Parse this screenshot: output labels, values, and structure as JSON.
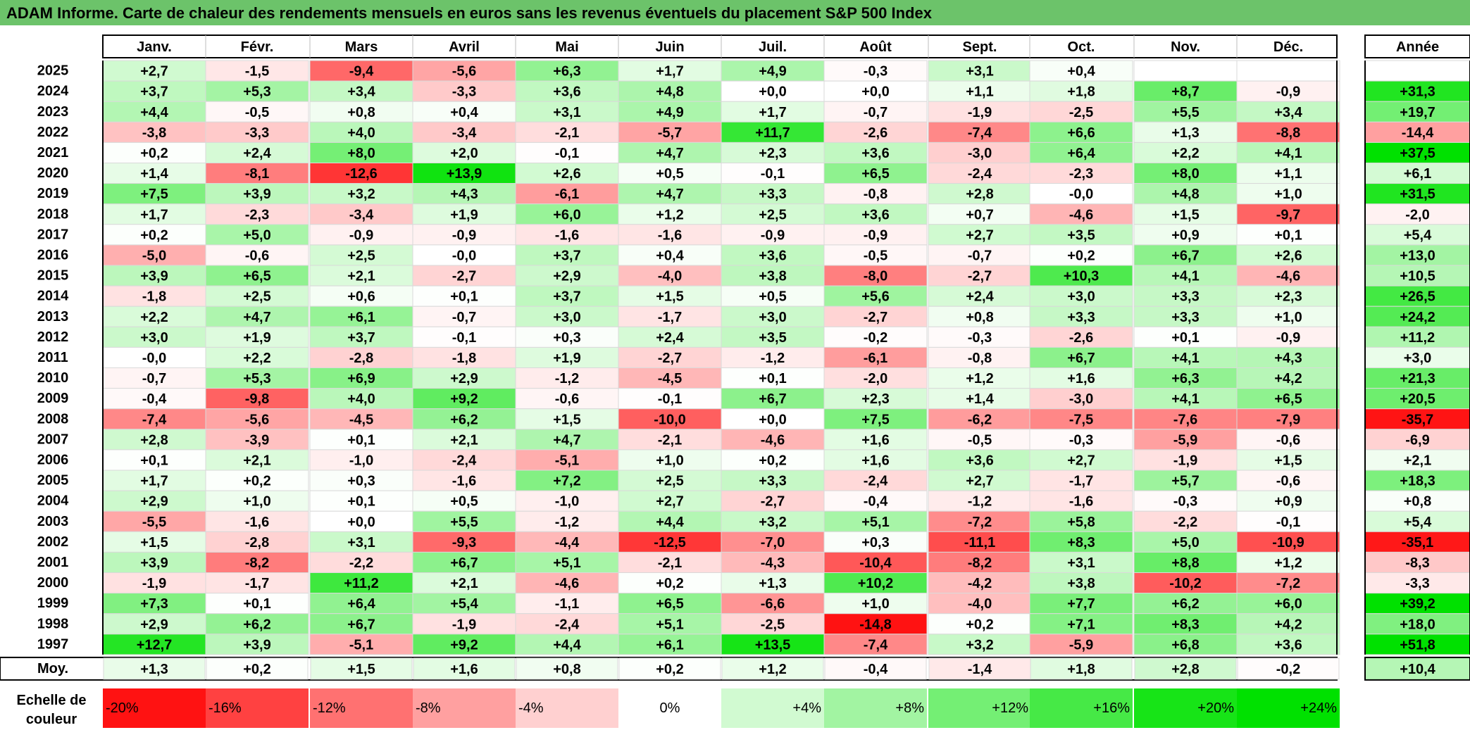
{
  "title": "ADAM Informe. Carte de chaleur des rendements mensuels en euros sans les revenus éventuels du placement S&P 500 Index",
  "chart_data": {
    "type": "heatmap",
    "title": "ADAM Informe. Carte de chaleur des rendements mensuels en euros sans les revenus éventuels du placement S&P 500 Index",
    "months": [
      "Janv.",
      "Févr.",
      "Mars",
      "Avril",
      "Mai",
      "Juin",
      "Juil.",
      "Août",
      "Sept.",
      "Oct.",
      "Nov.",
      "Déc."
    ],
    "annual_label": "Année",
    "rows": [
      {
        "year": "2025",
        "values": [
          "+2,7",
          "-1,5",
          "-9,4",
          "-5,6",
          "+6,3",
          "+1,7",
          "+4,9",
          "-0,3",
          "+3,1",
          "+0,4",
          "",
          ""
        ],
        "annual": ""
      },
      {
        "year": "2024",
        "values": [
          "+3,7",
          "+5,3",
          "+3,4",
          "-3,3",
          "+3,6",
          "+4,8",
          "+0,0",
          "+0,0",
          "+1,1",
          "+1,8",
          "+8,7",
          "-0,9"
        ],
        "annual": "+31,3"
      },
      {
        "year": "2023",
        "values": [
          "+4,4",
          "-0,5",
          "+0,8",
          "+0,4",
          "+3,1",
          "+4,9",
          "+1,7",
          "-0,7",
          "-1,9",
          "-2,5",
          "+5,5",
          "+3,4"
        ],
        "annual": "+19,7"
      },
      {
        "year": "2022",
        "values": [
          "-3,8",
          "-3,3",
          "+4,0",
          "-3,4",
          "-2,1",
          "-5,7",
          "+11,7",
          "-2,6",
          "-7,4",
          "+6,6",
          "+1,3",
          "-8,8"
        ],
        "annual": "-14,4"
      },
      {
        "year": "2021",
        "values": [
          "+0,2",
          "+2,4",
          "+8,0",
          "+2,0",
          "-0,1",
          "+4,7",
          "+2,3",
          "+3,6",
          "-3,0",
          "+6,4",
          "+2,2",
          "+4,1"
        ],
        "annual": "+37,5"
      },
      {
        "year": "2020",
        "values": [
          "+1,4",
          "-8,1",
          "-12,6",
          "+13,9",
          "+2,6",
          "+0,5",
          "-0,1",
          "+6,5",
          "-2,4",
          "-2,3",
          "+8,0",
          "+1,1"
        ],
        "annual": "+6,1"
      },
      {
        "year": "2019",
        "values": [
          "+7,5",
          "+3,9",
          "+3,2",
          "+4,3",
          "-6,1",
          "+4,7",
          "+3,3",
          "-0,8",
          "+2,8",
          "-0,0",
          "+4,8",
          "+1,0"
        ],
        "annual": "+31,5"
      },
      {
        "year": "2018",
        "values": [
          "+1,7",
          "-2,3",
          "-3,4",
          "+1,9",
          "+6,0",
          "+1,2",
          "+2,5",
          "+3,6",
          "+0,7",
          "-4,6",
          "+1,5",
          "-9,7"
        ],
        "annual": "-2,0"
      },
      {
        "year": "2017",
        "values": [
          "+0,2",
          "+5,0",
          "-0,9",
          "-0,9",
          "-1,6",
          "-1,6",
          "-0,9",
          "-0,9",
          "+2,7",
          "+3,5",
          "+0,9",
          "+0,1"
        ],
        "annual": "+5,4"
      },
      {
        "year": "2016",
        "values": [
          "-5,0",
          "-0,6",
          "+2,5",
          "-0,0",
          "+3,7",
          "+0,4",
          "+3,6",
          "-0,5",
          "-0,7",
          "+0,2",
          "+6,7",
          "+2,6"
        ],
        "annual": "+13,0"
      },
      {
        "year": "2015",
        "values": [
          "+3,9",
          "+6,5",
          "+2,1",
          "-2,7",
          "+2,9",
          "-4,0",
          "+3,8",
          "-8,0",
          "-2,7",
          "+10,3",
          "+4,1",
          "-4,6"
        ],
        "annual": "+10,5"
      },
      {
        "year": "2014",
        "values": [
          "-1,8",
          "+2,5",
          "+0,6",
          "+0,1",
          "+3,7",
          "+1,5",
          "+0,5",
          "+5,6",
          "+2,4",
          "+3,0",
          "+3,3",
          "+2,3"
        ],
        "annual": "+26,5"
      },
      {
        "year": "2013",
        "values": [
          "+2,2",
          "+4,7",
          "+6,1",
          "-0,7",
          "+3,0",
          "-1,7",
          "+3,0",
          "-2,7",
          "+0,8",
          "+3,3",
          "+3,3",
          "+1,0"
        ],
        "annual": "+24,2"
      },
      {
        "year": "2012",
        "values": [
          "+3,0",
          "+1,9",
          "+3,7",
          "-0,1",
          "+0,3",
          "+2,4",
          "+3,5",
          "-0,2",
          "-0,3",
          "-2,6",
          "+0,1",
          "-0,9"
        ],
        "annual": "+11,2"
      },
      {
        "year": "2011",
        "values": [
          "-0,0",
          "+2,2",
          "-2,8",
          "-1,8",
          "+1,9",
          "-2,7",
          "-1,2",
          "-6,1",
          "-0,8",
          "+6,7",
          "+4,1",
          "+4,3"
        ],
        "annual": "+3,0"
      },
      {
        "year": "2010",
        "values": [
          "-0,7",
          "+5,3",
          "+6,9",
          "+2,9",
          "-1,2",
          "-4,5",
          "+0,1",
          "-2,0",
          "+1,2",
          "+1,6",
          "+6,3",
          "+4,2"
        ],
        "annual": "+21,3"
      },
      {
        "year": "2009",
        "values": [
          "-0,4",
          "-9,8",
          "+4,0",
          "+9,2",
          "-0,6",
          "-0,1",
          "+6,7",
          "+2,3",
          "+1,4",
          "-3,0",
          "+4,1",
          "+6,5"
        ],
        "annual": "+20,5"
      },
      {
        "year": "2008",
        "values": [
          "-7,4",
          "-5,6",
          "-4,5",
          "+6,2",
          "+1,5",
          "-10,0",
          "+0,0",
          "+7,5",
          "-6,2",
          "-7,5",
          "-7,6",
          "-7,9"
        ],
        "annual": "-35,7"
      },
      {
        "year": "2007",
        "values": [
          "+2,8",
          "-3,9",
          "+0,1",
          "+2,1",
          "+4,7",
          "-2,1",
          "-4,6",
          "+1,6",
          "-0,5",
          "-0,3",
          "-5,9",
          "-0,6"
        ],
        "annual": "-6,9"
      },
      {
        "year": "2006",
        "values": [
          "+0,1",
          "+2,1",
          "-1,0",
          "-2,4",
          "-5,1",
          "+1,0",
          "+0,2",
          "+1,6",
          "+3,6",
          "+2,7",
          "-1,9",
          "+1,5"
        ],
        "annual": "+2,1"
      },
      {
        "year": "2005",
        "values": [
          "+1,7",
          "+0,2",
          "+0,3",
          "-1,6",
          "+7,2",
          "+2,5",
          "+3,3",
          "-2,4",
          "+2,7",
          "-1,7",
          "+5,7",
          "-0,6"
        ],
        "annual": "+18,3"
      },
      {
        "year": "2004",
        "values": [
          "+2,9",
          "+1,0",
          "+0,1",
          "+0,5",
          "-1,0",
          "+2,7",
          "-2,7",
          "-0,4",
          "-1,2",
          "-1,6",
          "-0,3",
          "+0,9"
        ],
        "annual": "+0,8"
      },
      {
        "year": "2003",
        "values": [
          "-5,5",
          "-1,6",
          "+0,0",
          "+5,5",
          "-1,2",
          "+4,4",
          "+3,2",
          "+5,1",
          "-7,2",
          "+5,8",
          "-2,2",
          "-0,1"
        ],
        "annual": "+5,4"
      },
      {
        "year": "2002",
        "values": [
          "+1,5",
          "-2,8",
          "+3,1",
          "-9,3",
          "-4,4",
          "-12,5",
          "-7,0",
          "+0,3",
          "-11,1",
          "+8,3",
          "+5,0",
          "-10,9"
        ],
        "annual": "-35,1"
      },
      {
        "year": "2001",
        "values": [
          "+3,9",
          "-8,2",
          "-2,2",
          "+6,7",
          "+5,1",
          "-2,1",
          "-4,3",
          "-10,4",
          "-8,2",
          "+3,1",
          "+8,8",
          "+1,2"
        ],
        "annual": "-8,3"
      },
      {
        "year": "2000",
        "values": [
          "-1,9",
          "-1,7",
          "+11,2",
          "+2,1",
          "-4,6",
          "+0,2",
          "+1,3",
          "+10,2",
          "-4,2",
          "+3,8",
          "-10,2",
          "-7,2"
        ],
        "annual": "-3,3"
      },
      {
        "year": "1999",
        "values": [
          "+7,3",
          "+0,1",
          "+6,4",
          "+5,4",
          "-1,1",
          "+6,5",
          "-6,6",
          "+1,0",
          "-4,0",
          "+7,7",
          "+6,2",
          "+6,0"
        ],
        "annual": "+39,2"
      },
      {
        "year": "1998",
        "values": [
          "+2,9",
          "+6,2",
          "+6,7",
          "-1,9",
          "-2,4",
          "+5,1",
          "-2,5",
          "-14,8",
          "+0,2",
          "+7,1",
          "+8,3",
          "+4,2"
        ],
        "annual": "+18,0"
      },
      {
        "year": "1997",
        "values": [
          "+12,7",
          "+3,9",
          "-5,1",
          "+9,2",
          "+4,4",
          "+6,1",
          "+13,5",
          "-7,4",
          "+3,2",
          "-5,9",
          "+6,8",
          "+3,6"
        ],
        "annual": "+51,8"
      }
    ],
    "average": {
      "label": "Moy.",
      "values": [
        "+1,3",
        "+0,2",
        "+1,5",
        "+1,6",
        "+0,8",
        "+0,2",
        "+1,2",
        "-0,4",
        "-1,4",
        "+1,8",
        "+2,8",
        "-0,2"
      ],
      "annual": "+10,4"
    },
    "scale": {
      "label_line1": "Echelle de",
      "label_line2": "couleur",
      "stops": [
        "-20%",
        "-16%",
        "-12%",
        "-8%",
        "-4%",
        "0%",
        "+4%",
        "+8%",
        "+12%",
        "+16%",
        "+20%",
        "+24%"
      ],
      "stop_values": [
        -20,
        -16,
        -12,
        -8,
        -4,
        0,
        4,
        8,
        12,
        16,
        20,
        24
      ]
    },
    "colors": {
      "negative": "#ff0000",
      "positive": "#00ff00",
      "neutral": "#ffffff",
      "title_bg": "#6cc36a"
    }
  }
}
